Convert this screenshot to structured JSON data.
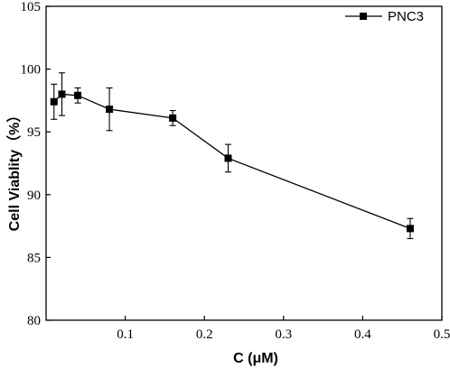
{
  "chart_data": {
    "type": "line",
    "title": "",
    "xlabel": "C (μM)",
    "ylabel": "Cell Viablity（%）",
    "xlim": [
      0,
      0.5
    ],
    "ylim": [
      80,
      105
    ],
    "xticks": [
      "0.1",
      "0.2",
      "0.3",
      "0.4",
      "0.5"
    ],
    "xtick_values": [
      0.1,
      0.2,
      0.3,
      0.4,
      0.5
    ],
    "yticks": [
      "80",
      "85",
      "90",
      "95",
      "100",
      "105"
    ],
    "ytick_values": [
      80,
      85,
      90,
      95,
      100,
      105
    ],
    "grid": false,
    "legend_position": "top-right",
    "series": [
      {
        "name": "PNC3",
        "marker": "square",
        "color": "#000000",
        "x": [
          0.01,
          0.02,
          0.04,
          0.08,
          0.16,
          0.23,
          0.46
        ],
        "y": [
          97.4,
          98.0,
          97.9,
          96.8,
          96.1,
          92.9,
          87.3
        ],
        "error": [
          1.4,
          1.7,
          0.6,
          1.7,
          0.6,
          1.1,
          0.8
        ]
      }
    ]
  }
}
